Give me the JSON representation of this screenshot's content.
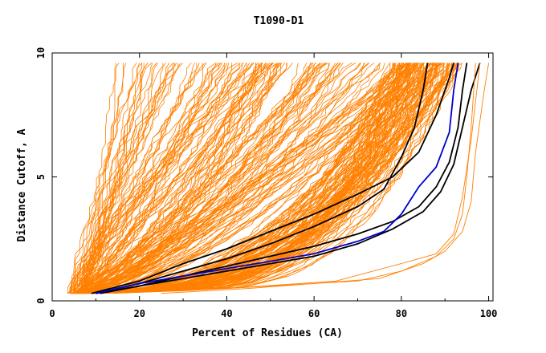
{
  "chart_data": {
    "type": "line",
    "title": "T1090-D1",
    "xlabel": "Percent of Residues (CA)",
    "ylabel": "Distance Cutoff, A",
    "xlim": [
      0,
      101
    ],
    "ylim": [
      0,
      10
    ],
    "xticks": [
      {
        "value": 0,
        "label": "0"
      },
      {
        "value": 20,
        "label": "20"
      },
      {
        "value": 40,
        "label": "40"
      },
      {
        "value": 60,
        "label": "60"
      },
      {
        "value": 80,
        "label": "80"
      },
      {
        "value": 100,
        "label": "100"
      }
    ],
    "yticks": [
      {
        "value": 0,
        "label": "0"
      },
      {
        "value": 5,
        "label": "5"
      },
      {
        "value": 10,
        "label": "10"
      }
    ],
    "colors": {
      "background_curves": "#ff8000",
      "highlight_black": "#000000",
      "highlight_blue": "#0000cc"
    },
    "series": [
      {
        "color": "#000000",
        "points": [
          [
            10,
            0.3
          ],
          [
            20,
            0.7
          ],
          [
            30,
            1.2
          ],
          [
            40,
            1.7
          ],
          [
            50,
            2.3
          ],
          [
            60,
            3.0
          ],
          [
            70,
            3.8
          ],
          [
            76,
            4.5
          ],
          [
            80,
            5.8
          ],
          [
            83,
            7.0
          ],
          [
            85,
            8.5
          ],
          [
            86,
            9.6
          ]
        ]
      },
      {
        "color": "#000000",
        "points": [
          [
            9,
            0.3
          ],
          [
            20,
            0.8
          ],
          [
            30,
            1.5
          ],
          [
            40,
            2.1
          ],
          [
            50,
            2.8
          ],
          [
            60,
            3.5
          ],
          [
            70,
            4.3
          ],
          [
            78,
            5.0
          ],
          [
            84,
            6.0
          ],
          [
            88,
            7.5
          ],
          [
            91,
            9.0
          ],
          [
            92,
            9.6
          ]
        ]
      },
      {
        "color": "#000000",
        "points": [
          [
            10,
            0.3
          ],
          [
            20,
            0.6
          ],
          [
            30,
            1.0
          ],
          [
            40,
            1.4
          ],
          [
            50,
            1.8
          ],
          [
            60,
            2.2
          ],
          [
            70,
            2.7
          ],
          [
            78,
            3.2
          ],
          [
            84,
            3.8
          ],
          [
            88,
            4.6
          ],
          [
            91,
            5.6
          ],
          [
            93,
            7.0
          ],
          [
            94,
            8.5
          ],
          [
            95,
            9.6
          ]
        ]
      },
      {
        "color": "#000000",
        "points": [
          [
            11,
            0.3
          ],
          [
            20,
            0.6
          ],
          [
            30,
            0.9
          ],
          [
            40,
            1.2
          ],
          [
            50,
            1.5
          ],
          [
            60,
            1.8
          ],
          [
            70,
            2.3
          ],
          [
            78,
            2.9
          ],
          [
            85,
            3.6
          ],
          [
            89,
            4.4
          ],
          [
            92,
            5.5
          ],
          [
            94,
            7.0
          ],
          [
            96,
            8.5
          ],
          [
            98,
            9.6
          ]
        ]
      },
      {
        "color": "#0000cc",
        "points": [
          [
            10,
            0.3
          ],
          [
            20,
            0.7
          ],
          [
            30,
            1.0
          ],
          [
            40,
            1.3
          ],
          [
            50,
            1.6
          ],
          [
            60,
            1.9
          ],
          [
            70,
            2.4
          ],
          [
            76,
            2.8
          ],
          [
            80,
            3.5
          ],
          [
            84,
            4.6
          ],
          [
            88,
            5.4
          ],
          [
            91,
            6.8
          ],
          [
            92,
            8.5
          ],
          [
            93,
            9.6
          ]
        ]
      },
      {
        "color": "#ff8000",
        "points": [
          [
            12,
            0.3
          ],
          [
            30,
            0.4
          ],
          [
            50,
            0.6
          ],
          [
            70,
            0.8
          ],
          [
            80,
            1.2
          ],
          [
            88,
            1.8
          ],
          [
            92,
            2.5
          ],
          [
            94,
            3.5
          ],
          [
            95,
            5.0
          ],
          [
            96,
            7.0
          ],
          [
            97,
            9.6
          ]
        ]
      },
      {
        "color": "#ff8000",
        "points": [
          [
            25,
            0.3
          ],
          [
            45,
            0.5
          ],
          [
            60,
            0.7
          ],
          [
            75,
            0.9
          ],
          [
            85,
            1.5
          ],
          [
            90,
            2.0
          ],
          [
            94,
            2.8
          ],
          [
            96,
            4.0
          ],
          [
            97,
            6.0
          ],
          [
            99,
            8.5
          ],
          [
            100,
            9.6
          ]
        ]
      },
      {
        "color": "#ff8000",
        "points": [
          [
            14,
            0.3
          ],
          [
            40,
            0.5
          ],
          [
            65,
            0.8
          ],
          [
            82,
            1.6
          ],
          [
            88,
            1.9
          ],
          [
            92,
            2.7
          ],
          [
            94,
            4.2
          ],
          [
            96,
            6.5
          ],
          [
            98,
            9.6
          ]
        ]
      }
    ]
  }
}
